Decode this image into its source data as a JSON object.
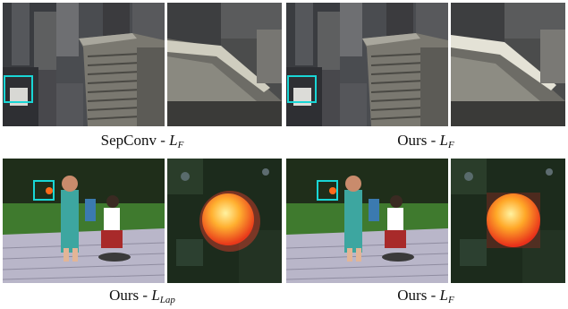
{
  "figure": {
    "captions": [
      {
        "method": "SepConv",
        "sep": " - ",
        "loss_symbol": "L",
        "loss_sub": "F"
      },
      {
        "method": "Ours",
        "sep": " - ",
        "loss_symbol": "L",
        "loss_sub": "F"
      },
      {
        "method": "Ours",
        "sep": " - ",
        "loss_symbol": "L",
        "loss_sub": "Lap"
      },
      {
        "method": "Ours",
        "sep": " - ",
        "loss_symbol": "L",
        "loss_sub": "F"
      }
    ],
    "colors": {
      "highlight_box": "#19d6d6",
      "building_gray": "#6b6a64",
      "grass_green": "#3f7a2e",
      "deck_lavender": "#b9b6c9",
      "ball_orange": "#ff6a1a"
    },
    "scenes": [
      "city-buildings",
      "children-playing"
    ]
  }
}
